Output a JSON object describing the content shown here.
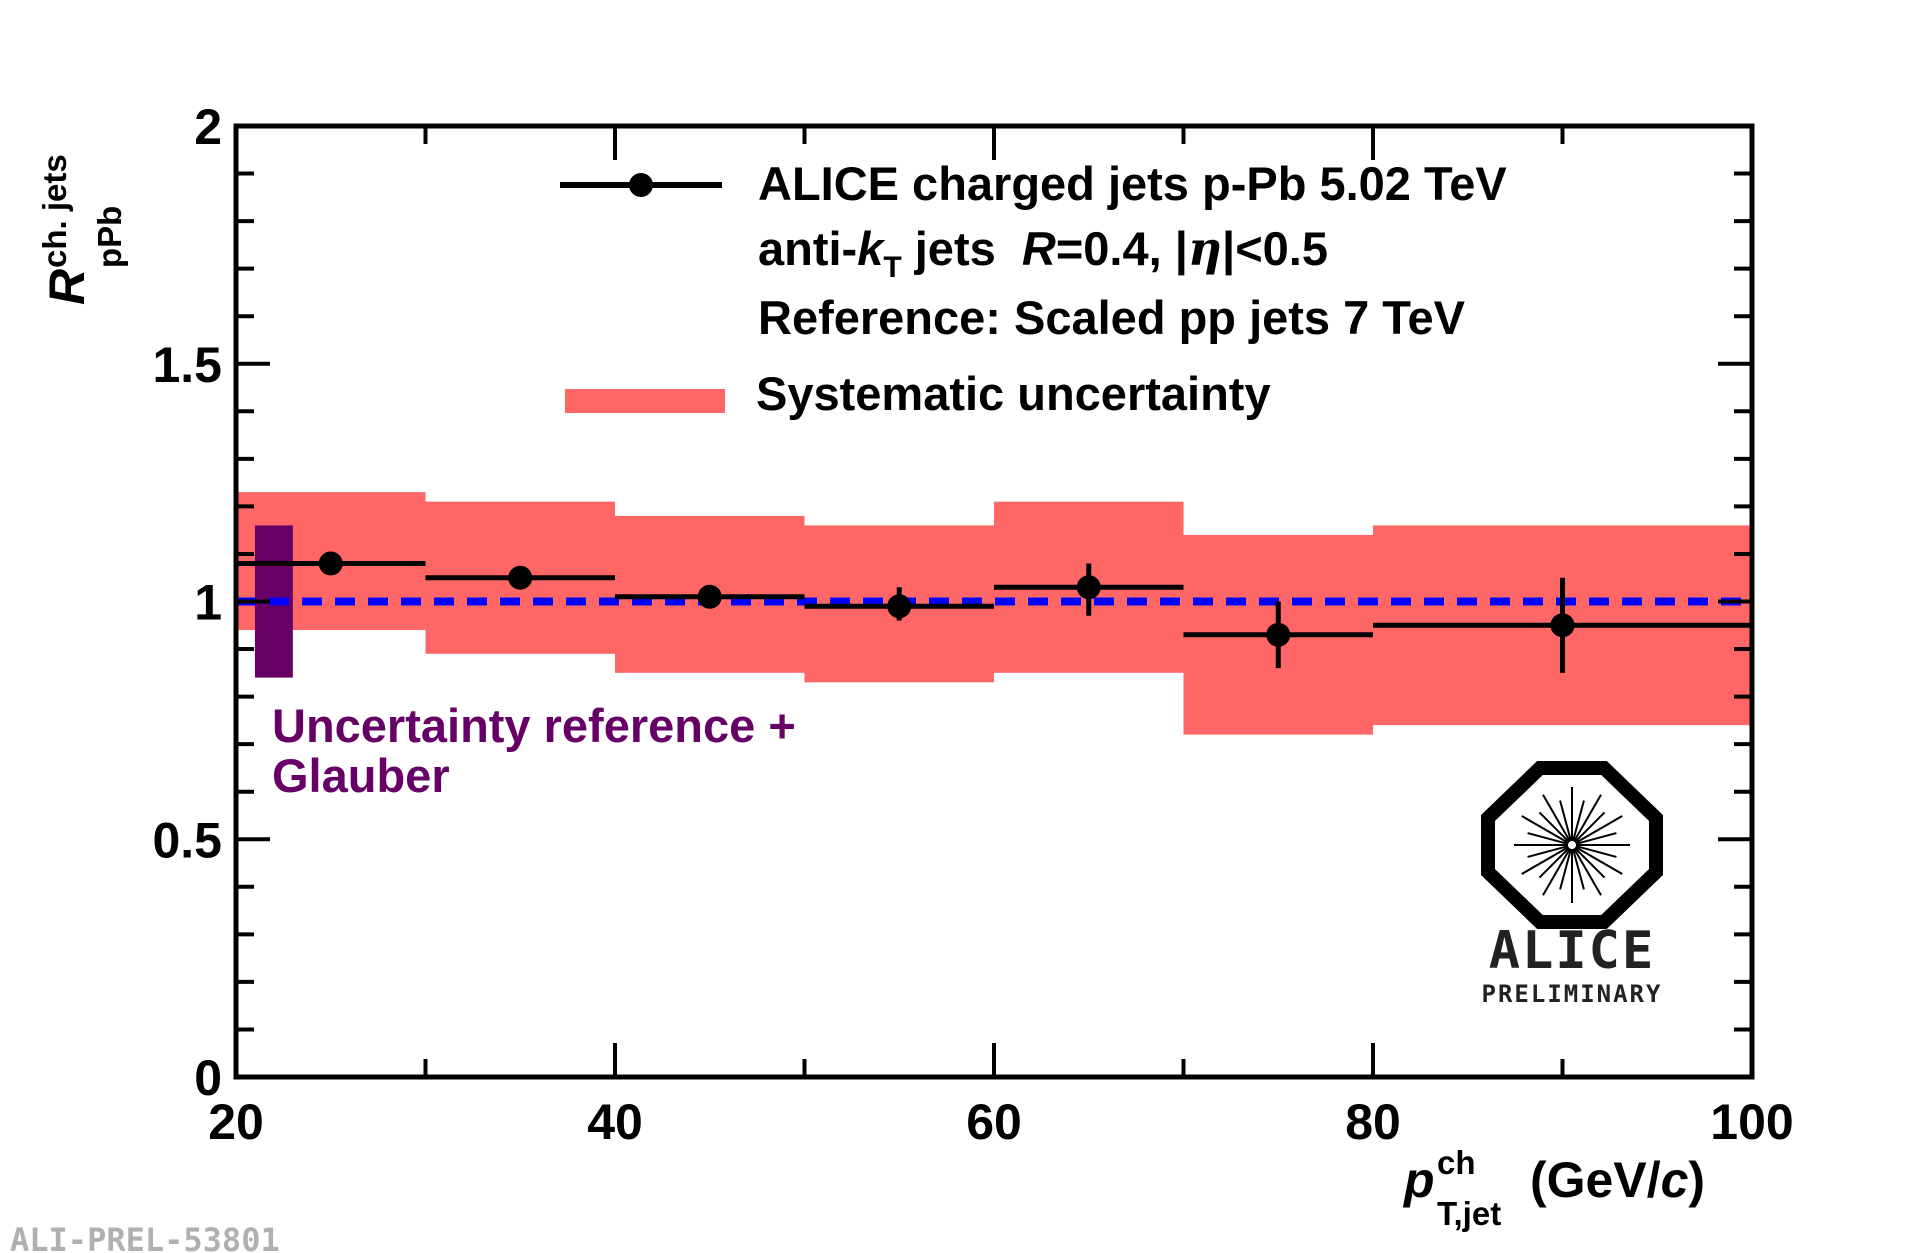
{
  "chart_data": {
    "type": "scatter",
    "xlim": [
      20,
      100
    ],
    "ylim": [
      0,
      2
    ],
    "x_ticks": [
      "20",
      "40",
      "60",
      "80",
      "100"
    ],
    "y_ticks": [
      "0",
      "0.5",
      "1",
      "1.5",
      "2"
    ],
    "x_major": [
      20,
      40,
      60,
      80,
      100
    ],
    "y_major": [
      0,
      0.5,
      1,
      1.5,
      2
    ],
    "x_minor_step": 10,
    "y_minor_step": 0.1,
    "ylabel": {
      "base": "R",
      "sup": "ch. jets",
      "sub": "pPb"
    },
    "xlabel": {
      "base": "p",
      "sup": "ch",
      "sub": "T,jet",
      "unit_pre": " (GeV/",
      "unit_var": "c",
      "unit_post": ")"
    },
    "reference_line": {
      "y": 1.0,
      "color": "#0000ff",
      "style": "dashed"
    },
    "series": [
      {
        "name": "ALICE charged jets p-Pb 5.02 TeV",
        "color": "#000000",
        "points": [
          {
            "x": 25,
            "xlo": 20,
            "xhi": 30,
            "y": 1.08,
            "ylo": 1.06,
            "yhi": 1.1,
            "syslo": 0.94,
            "syshi": 1.23
          },
          {
            "x": 35,
            "xlo": 30,
            "xhi": 40,
            "y": 1.05,
            "ylo": 1.04,
            "yhi": 1.06,
            "syslo": 0.89,
            "syshi": 1.21
          },
          {
            "x": 45,
            "xlo": 40,
            "xhi": 50,
            "y": 1.01,
            "ylo": 0.99,
            "yhi": 1.03,
            "syslo": 0.85,
            "syshi": 1.18
          },
          {
            "x": 55,
            "xlo": 50,
            "xhi": 60,
            "y": 0.99,
            "ylo": 0.96,
            "yhi": 1.03,
            "syslo": 0.83,
            "syshi": 1.16
          },
          {
            "x": 65,
            "xlo": 60,
            "xhi": 70,
            "y": 1.03,
            "ylo": 0.97,
            "yhi": 1.08,
            "syslo": 0.85,
            "syshi": 1.21
          },
          {
            "x": 75,
            "xlo": 70,
            "xhi": 80,
            "y": 0.93,
            "ylo": 0.86,
            "yhi": 1.0,
            "syslo": 0.72,
            "syshi": 1.14
          },
          {
            "x": 90,
            "xlo": 80,
            "xhi": 100,
            "y": 0.95,
            "ylo": 0.85,
            "yhi": 1.05,
            "syslo": 0.74,
            "syshi": 1.16
          }
        ]
      }
    ],
    "systematic_color": "#ff6666",
    "normalization_box": {
      "x_center": 22.0,
      "x_width": 2.0,
      "ylo": 0.84,
      "yhi": 1.16,
      "color": "#660066"
    },
    "legend": {
      "entry1": "ALICE charged jets p-Pb 5.02 TeV",
      "line2_pre": "anti-",
      "line2_k": "k",
      "line2_ksub": "T",
      "line2_mid": " jets  ",
      "line2_R": "R",
      "line2_post": "=0.4, |",
      "line2_eta": "η",
      "line2_end": "|<0.5",
      "line3": "Reference: Scaled pp jets 7 TeV",
      "entry2": "Systematic uncertainty"
    },
    "annotation_line1": "Uncertainty reference +",
    "annotation_line2": "Glauber",
    "annotation_color": "#660066",
    "logo": {
      "name": "ALICE",
      "subtitle": "PRELIMINARY"
    },
    "figure_id": "ALI-PREL-53801"
  }
}
